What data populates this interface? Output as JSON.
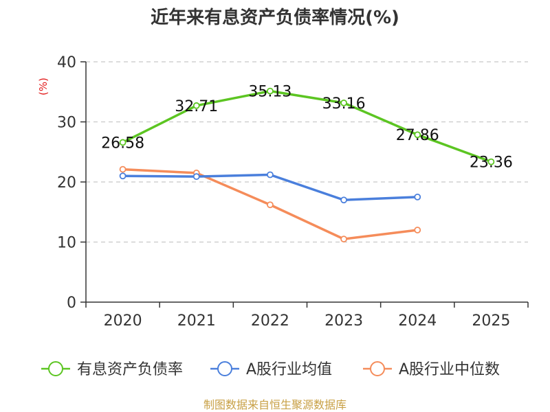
{
  "colors": {
    "series": [
      "#5cc522",
      "#4a7fdc",
      "#f58c5a"
    ],
    "unit": "#e11919",
    "source": "#c8a046",
    "axis": "#333333",
    "grid": "#c8c8c8"
  },
  "chart_data": {
    "type": "line",
    "title": "近年来有息资产负债率情况(%)",
    "y_unit": "(%)",
    "ylim": [
      0,
      40
    ],
    "yticks": [
      "0",
      "10",
      "20",
      "30",
      "40"
    ],
    "categories": [
      "2020",
      "2021",
      "2022",
      "2023",
      "2024",
      "2025"
    ],
    "grid": "horizontal dashed",
    "legend_position": "bottom",
    "series": [
      {
        "name": "有息资产负债率",
        "values": [
          26.58,
          32.71,
          35.13,
          33.16,
          27.86,
          23.36
        ],
        "labels": [
          "26.58",
          "32.71",
          "35.13",
          "33.16",
          "27.86",
          "23.36"
        ]
      },
      {
        "name": "A股行业均值",
        "values": [
          21.0,
          20.9,
          21.2,
          17.0,
          17.5,
          null
        ]
      },
      {
        "name": "A股行业中位数",
        "values": [
          22.1,
          21.5,
          16.2,
          10.5,
          12.0,
          null
        ]
      }
    ]
  },
  "source": "制图数据来自恒生聚源数据库"
}
